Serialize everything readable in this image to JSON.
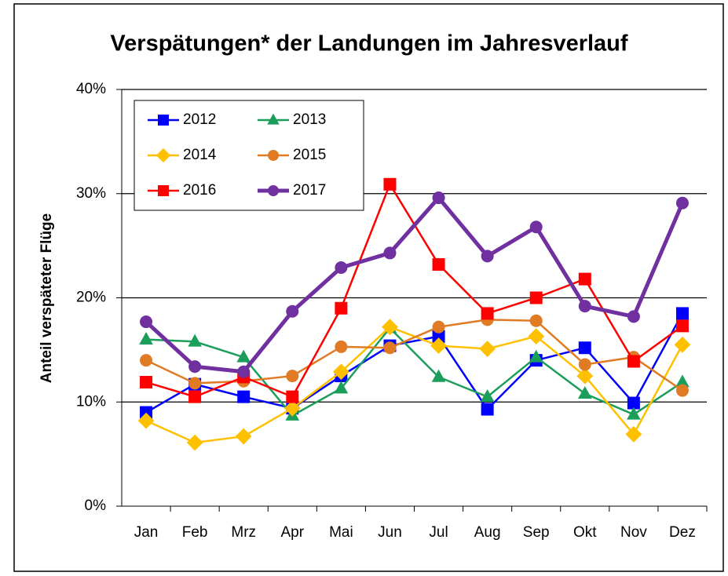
{
  "chart_data": {
    "type": "line",
    "title": "Verspätungen* der Landungen im Jahresverlauf",
    "y_label": "Anteil verspäteter Flüge",
    "categories": [
      "Jan",
      "Feb",
      "Mrz",
      "Apr",
      "Mai",
      "Jun",
      "Jul",
      "Aug",
      "Sep",
      "Okt",
      "Nov",
      "Dez"
    ],
    "ylim": [
      0,
      40
    ],
    "yticks": [
      {
        "value": 0,
        "label": "0%"
      },
      {
        "value": 10,
        "label": "10%"
      },
      {
        "value": 20,
        "label": "20%"
      },
      {
        "value": 30,
        "label": "30%"
      },
      {
        "value": 40,
        "label": "40%"
      }
    ],
    "grid": true,
    "legend": "upper left",
    "series": [
      {
        "name": "2012",
        "color": "#0000ff",
        "marker": "square",
        "values": [
          9.0,
          11.7,
          10.5,
          9.4,
          12.5,
          15.4,
          16.3,
          9.3,
          14.0,
          15.2,
          9.9,
          18.5
        ]
      },
      {
        "name": "2013",
        "color": "#1a9e5a",
        "marker": "triangle",
        "values": [
          16.0,
          15.8,
          14.3,
          8.7,
          11.3,
          17.1,
          12.4,
          10.5,
          14.3,
          10.8,
          8.8,
          11.9
        ]
      },
      {
        "name": "2014",
        "color": "#ffc000",
        "marker": "diamond",
        "values": [
          8.2,
          6.1,
          6.7,
          9.4,
          12.9,
          17.2,
          15.4,
          15.1,
          16.3,
          12.5,
          6.9,
          15.5
        ]
      },
      {
        "name": "2015",
        "color": "#e07b24",
        "marker": "circle",
        "values": [
          14.0,
          11.8,
          12.0,
          12.5,
          15.3,
          15.2,
          17.2,
          17.9,
          17.8,
          13.6,
          14.3,
          11.1
        ]
      },
      {
        "name": "2016",
        "color": "#ff0000",
        "marker": "square",
        "values": [
          11.9,
          10.5,
          12.4,
          10.5,
          19.0,
          30.9,
          23.2,
          18.5,
          20.0,
          21.8,
          13.9,
          17.3
        ]
      },
      {
        "name": "2017",
        "color": "#7030a0",
        "marker": "circle",
        "width": 5,
        "values": [
          17.7,
          13.4,
          12.9,
          18.7,
          22.9,
          24.3,
          29.6,
          24.0,
          26.8,
          19.2,
          18.2,
          29.1
        ]
      }
    ]
  }
}
